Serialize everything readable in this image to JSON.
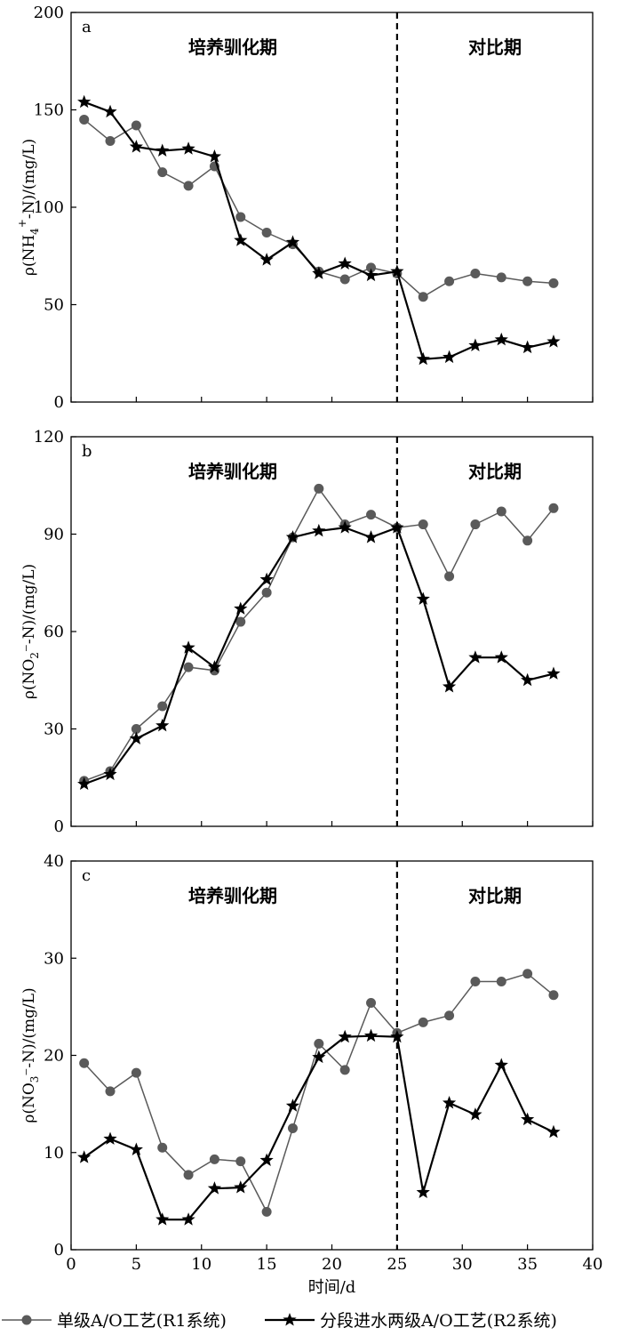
{
  "chart_data": [
    {
      "type": "line",
      "panel_label": "a",
      "ylabel_parts": {
        "pre": "ρ(NH",
        "sub": "4",
        "sup": "+",
        "post": "-N)/(mg/L)"
      },
      "ylim": [
        0,
        200
      ],
      "yticks": [
        0,
        50,
        100,
        150,
        200
      ],
      "xlim": [
        0,
        40
      ],
      "xticks": [
        0,
        5,
        10,
        15,
        20,
        25,
        30,
        35,
        40
      ],
      "show_xtick_labels": false,
      "phase_labels": [
        "培养驯化期",
        "对比期"
      ],
      "divider_x": 25,
      "series": [
        {
          "name": "单级A/O工艺(R1系统)",
          "marker": "circle",
          "color": "#5a5a5a",
          "x": [
            1,
            3,
            5,
            7,
            9,
            11,
            13,
            15,
            17,
            19,
            21,
            23,
            25,
            27,
            29,
            31,
            33,
            35,
            37
          ],
          "y": [
            145,
            134,
            142,
            118,
            111,
            121,
            95,
            87,
            81,
            67,
            63,
            69,
            66,
            54,
            62,
            66,
            64,
            62,
            61
          ]
        },
        {
          "name": "分段进水两级A/O工艺(R2系统)",
          "marker": "star",
          "color": "#000000",
          "x": [
            1,
            3,
            5,
            7,
            9,
            11,
            13,
            15,
            17,
            19,
            21,
            23,
            25,
            27,
            29,
            31,
            33,
            35,
            37
          ],
          "y": [
            154,
            149,
            131,
            129,
            130,
            126,
            83,
            73,
            82,
            66,
            71,
            65,
            67,
            22,
            23,
            29,
            32,
            28,
            31
          ]
        }
      ]
    },
    {
      "type": "line",
      "panel_label": "b",
      "ylabel_parts": {
        "pre": "ρ(NO",
        "sub": "2",
        "sup": "",
        "post": "⁻-N)/(mg/L)"
      },
      "ylim": [
        0,
        120
      ],
      "yticks": [
        0,
        30,
        60,
        90,
        120
      ],
      "xlim": [
        0,
        40
      ],
      "xticks": [
        0,
        5,
        10,
        15,
        20,
        25,
        30,
        35,
        40
      ],
      "show_xtick_labels": false,
      "phase_labels": [
        "培养驯化期",
        "对比期"
      ],
      "divider_x": 25,
      "series": [
        {
          "name": "单级A/O工艺(R1系统)",
          "marker": "circle",
          "color": "#5a5a5a",
          "x": [
            1,
            3,
            5,
            7,
            9,
            11,
            13,
            15,
            17,
            19,
            21,
            23,
            25,
            27,
            29,
            31,
            33,
            35,
            37
          ],
          "y": [
            14,
            17,
            30,
            37,
            49,
            48,
            63,
            72,
            89,
            104,
            93,
            96,
            92,
            93,
            77,
            93,
            97,
            88,
            98
          ]
        },
        {
          "name": "分段进水两级A/O工艺(R2系统)",
          "marker": "star",
          "color": "#000000",
          "x": [
            1,
            3,
            5,
            7,
            9,
            11,
            13,
            15,
            17,
            19,
            21,
            23,
            25,
            27,
            29,
            31,
            33,
            35,
            37
          ],
          "y": [
            13,
            16,
            27,
            31,
            55,
            49,
            67,
            76,
            89,
            91,
            92,
            89,
            92,
            70,
            43,
            52,
            52,
            45,
            47
          ]
        }
      ]
    },
    {
      "type": "line",
      "panel_label": "c",
      "ylabel_parts": {
        "pre": "ρ(NO",
        "sub": "3",
        "sup": "",
        "post": "⁻-N)/(mg/L)"
      },
      "ylim": [
        0,
        40
      ],
      "yticks": [
        0,
        10,
        20,
        30,
        40
      ],
      "xlim": [
        0,
        40
      ],
      "xticks": [
        0,
        5,
        10,
        15,
        20,
        25,
        30,
        35,
        40
      ],
      "show_xtick_labels": true,
      "xlabel": "时间/d",
      "phase_labels": [
        "培养驯化期",
        "对比期"
      ],
      "divider_x": 25,
      "series": [
        {
          "name": "单级A/O工艺(R1系统)",
          "marker": "circle",
          "color": "#5a5a5a",
          "x": [
            1,
            3,
            5,
            7,
            9,
            11,
            13,
            15,
            17,
            19,
            21,
            23,
            25,
            27,
            29,
            31,
            33,
            35,
            37
          ],
          "y": [
            19.2,
            16.3,
            18.2,
            10.5,
            7.7,
            9.3,
            9.1,
            3.9,
            12.5,
            21.2,
            18.5,
            25.4,
            22.3,
            23.4,
            24.1,
            27.6,
            27.6,
            28.4,
            26.2
          ]
        },
        {
          "name": "分段进水两级A/O工艺(R2系统)",
          "marker": "star",
          "color": "#000000",
          "x": [
            1,
            3,
            5,
            7,
            9,
            11,
            13,
            15,
            17,
            19,
            21,
            23,
            25,
            27,
            29,
            31,
            33,
            35,
            37
          ],
          "y": [
            9.5,
            11.4,
            10.3,
            3.1,
            3.1,
            6.3,
            6.4,
            9.2,
            14.8,
            19.8,
            21.9,
            22.0,
            21.9,
            5.9,
            15.1,
            13.9,
            19.0,
            13.4,
            12.1
          ]
        }
      ]
    }
  ],
  "legend": {
    "items": [
      {
        "label": "单级A/O工艺(R1系统)",
        "marker": "circle"
      },
      {
        "label": "分段进水两级A/O工艺(R2系统)",
        "marker": "star"
      }
    ]
  }
}
